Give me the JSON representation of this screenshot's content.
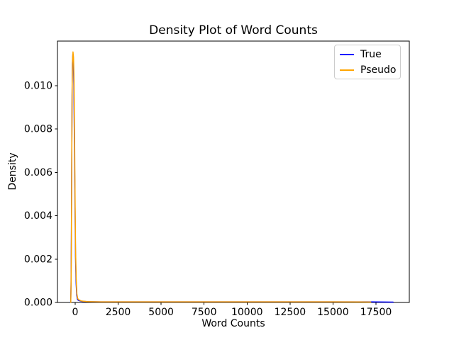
{
  "figure": {
    "background": "#ffffff",
    "axis_color": "#000000",
    "text_color": "#000000"
  },
  "chart_data": {
    "type": "line",
    "title": "Density Plot of Word Counts",
    "xlabel": "Word Counts",
    "ylabel": "Density",
    "xlim": [
      -1030,
      19440
    ],
    "ylim": [
      0,
      0.01205
    ],
    "x_tick_values": [
      0,
      2500,
      5000,
      7500,
      10000,
      12500,
      15000,
      17500
    ],
    "x_tick_labels": [
      "0",
      "2500",
      "5000",
      "7500",
      "10000",
      "12500",
      "15000",
      "17500"
    ],
    "y_tick_values": [
      0.0,
      0.002,
      0.004,
      0.006,
      0.008,
      0.01
    ],
    "y_tick_labels": [
      "0.000",
      "0.002",
      "0.004",
      "0.006",
      "0.008",
      "0.010"
    ],
    "grid": false,
    "legend": {
      "position": "upper right",
      "entries": [
        {
          "label": "True",
          "color": "#0000ff"
        },
        {
          "label": "Pseudo",
          "color": "#ffa500"
        }
      ]
    },
    "series": [
      {
        "name": "True",
        "color": "#0000ff",
        "peak": {
          "x": -135,
          "density": 0.01145
        },
        "points": [
          [
            -260,
            0.0
          ],
          [
            -240,
            0.0008
          ],
          [
            -220,
            0.003
          ],
          [
            -200,
            0.0065
          ],
          [
            -180,
            0.0095
          ],
          [
            -160,
            0.011
          ],
          [
            -135,
            0.01145
          ],
          [
            -105,
            0.0112
          ],
          [
            -75,
            0.01
          ],
          [
            -45,
            0.0075
          ],
          [
            -10,
            0.0045
          ],
          [
            20,
            0.0022
          ],
          [
            50,
            0.001
          ],
          [
            90,
            0.00035
          ],
          [
            130,
            0.00015
          ],
          [
            180,
            0.0001
          ],
          [
            250,
            8e-05
          ],
          [
            400,
            5e-05
          ],
          [
            700,
            4e-05
          ],
          [
            1500,
            3e-05
          ],
          [
            3000,
            3e-05
          ],
          [
            6000,
            3e-05
          ],
          [
            10000,
            3e-05
          ],
          [
            14000,
            3e-05
          ],
          [
            17000,
            2.8e-05
          ],
          [
            18000,
            2e-05
          ],
          [
            18500,
            1.5e-05
          ]
        ]
      },
      {
        "name": "Pseudo",
        "color": "#ffa500",
        "peak": {
          "x": -125,
          "density": 0.01155
        },
        "points": [
          [
            -255,
            0.0
          ],
          [
            -235,
            0.001
          ],
          [
            -215,
            0.0035
          ],
          [
            -195,
            0.007
          ],
          [
            -175,
            0.01
          ],
          [
            -155,
            0.0112
          ],
          [
            -125,
            0.01155
          ],
          [
            -95,
            0.0113
          ],
          [
            -65,
            0.0102
          ],
          [
            -35,
            0.0078
          ],
          [
            -5,
            0.0048
          ],
          [
            25,
            0.0024
          ],
          [
            60,
            0.0011
          ],
          [
            100,
            0.0004
          ],
          [
            150,
            0.00018
          ],
          [
            220,
            0.00012
          ],
          [
            350,
            7e-05
          ],
          [
            700,
            4e-05
          ],
          [
            1500,
            3e-05
          ],
          [
            4000,
            3e-05
          ],
          [
            8000,
            3e-05
          ],
          [
            12000,
            3e-05
          ],
          [
            15000,
            3e-05
          ],
          [
            16500,
            2.6e-05
          ],
          [
            17200,
            2.2e-05
          ]
        ]
      }
    ]
  }
}
